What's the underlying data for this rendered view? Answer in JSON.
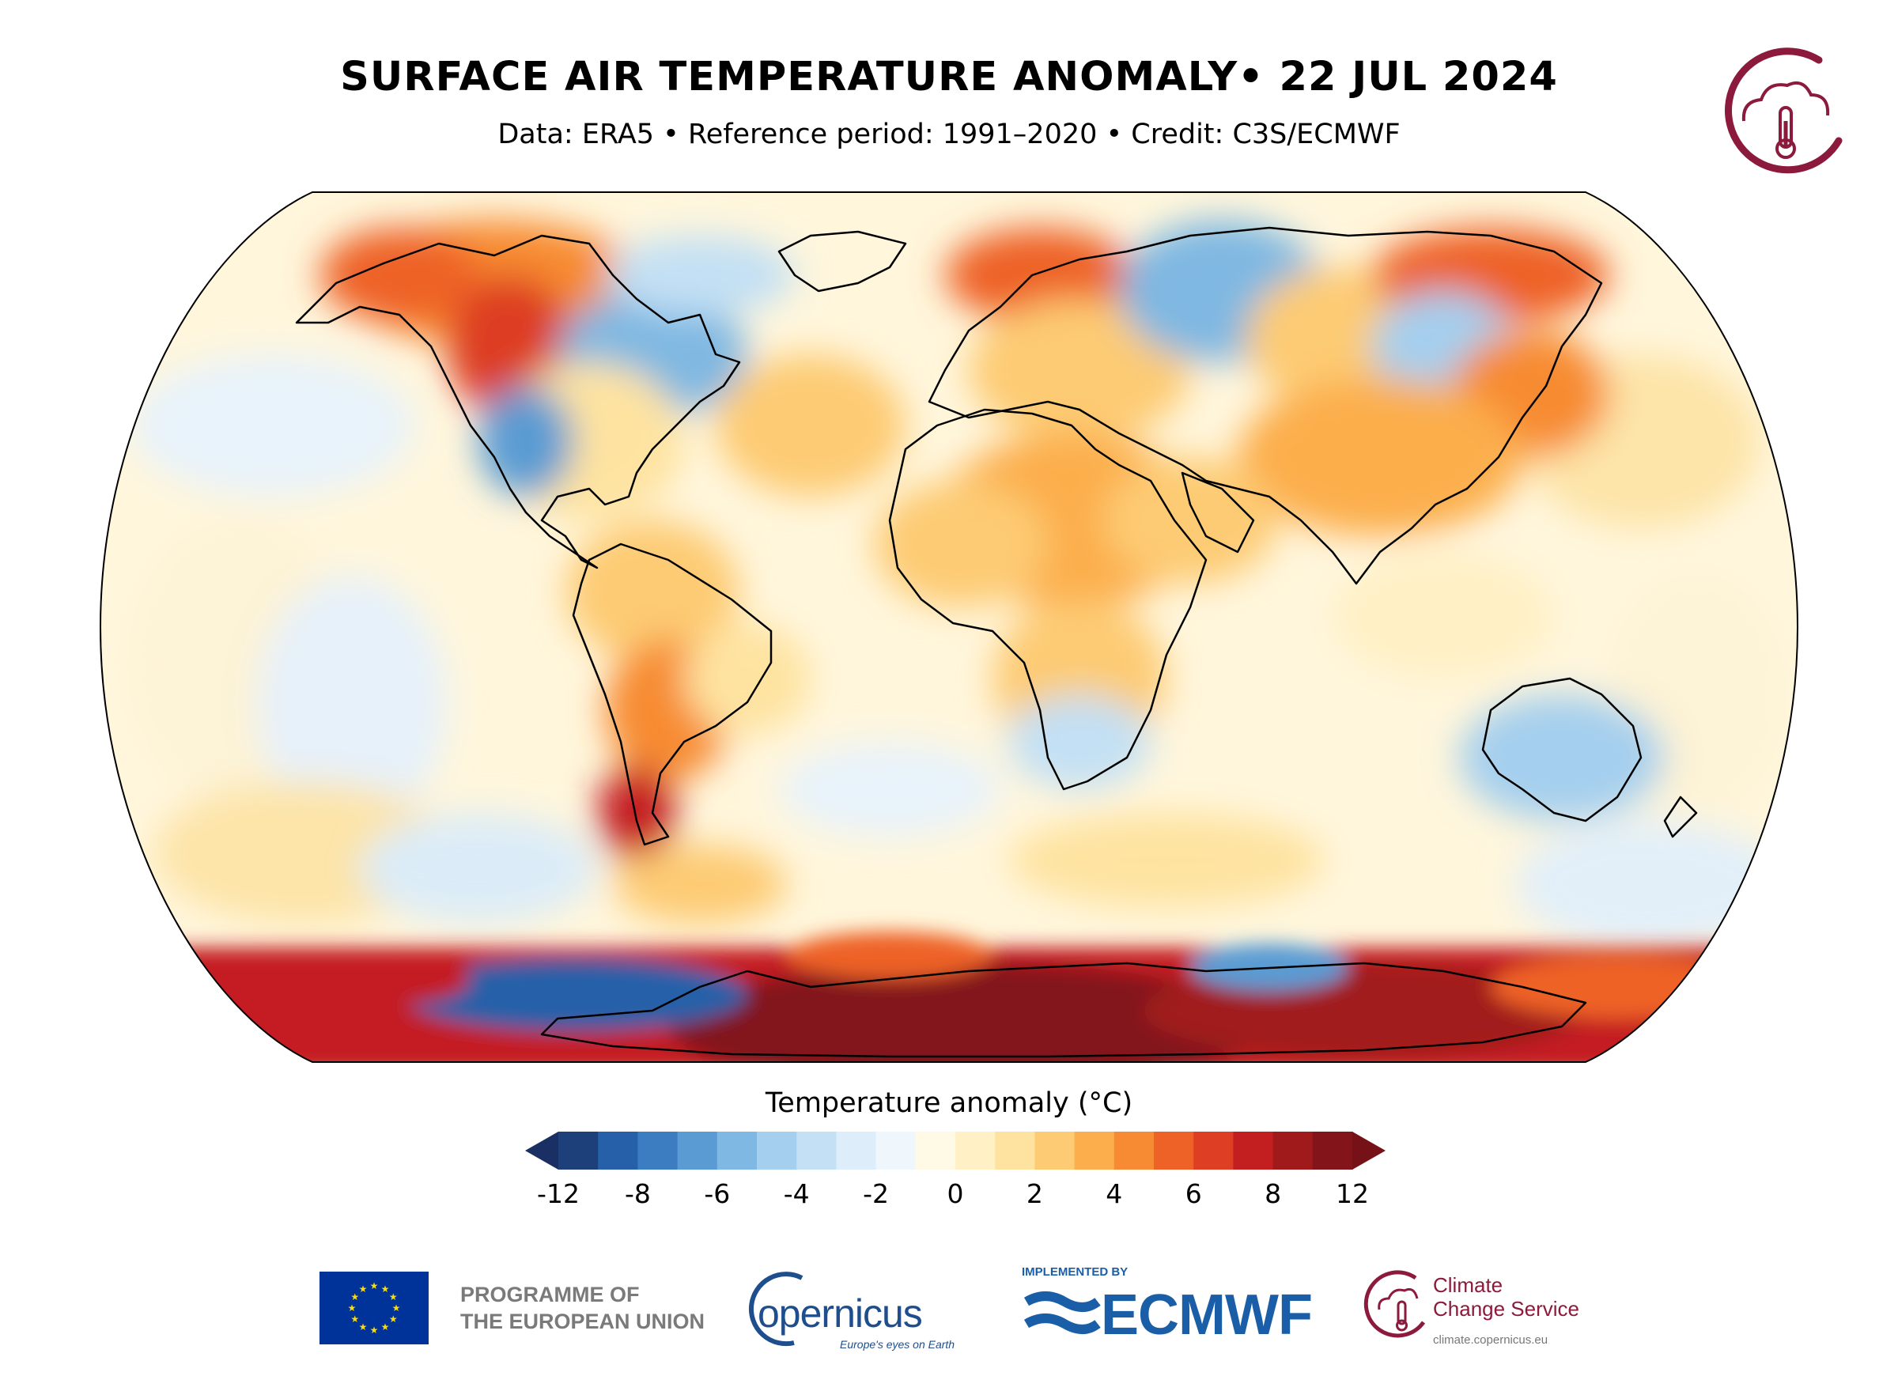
{
  "title": "SURFACE AIR TEMPERATURE ANOMALY• 22 JUL 2024",
  "subtitle": "Data: ERA5 • Reference period: 1991–2020 • Credit: C3S/ECMWF",
  "colorbar": {
    "title": "Temperature anomaly (°C)",
    "min": -12,
    "max": 12,
    "ticks": [
      "-12",
      "-8",
      "-6",
      "-4",
      "-2",
      "0",
      "2",
      "4",
      "6",
      "8",
      "12"
    ],
    "tick_values": [
      -12,
      -8,
      -6,
      -4,
      -2,
      0,
      2,
      4,
      6,
      8,
      12
    ],
    "bounds": [
      -12,
      -10,
      -8,
      -7,
      -6,
      -5,
      -4,
      -3,
      -2,
      -1,
      0,
      1,
      2,
      3,
      4,
      5,
      6,
      7,
      8,
      10,
      12
    ],
    "colors": [
      "#1d3f7a",
      "#2660a8",
      "#3b7dc0",
      "#5a9bd3",
      "#7fb8e2",
      "#a4cfee",
      "#c3e0f4",
      "#ddeefa",
      "#f0f7fc",
      "#fffae6",
      "#fff0c5",
      "#fee3a0",
      "#fdcb73",
      "#fcae4c",
      "#f78b33",
      "#ee6228",
      "#dd3e24",
      "#c41f20",
      "#a11a1b",
      "#82141a"
    ],
    "extend_low_color": "#1a2f64",
    "extend_high_color": "#761217"
  },
  "footer": {
    "eu_text_line1": "PROGRAMME OF",
    "eu_text_line2": "THE EUROPEAN UNION",
    "copernicus_word": "opernicus",
    "copernicus_tagline": "Europe's eyes on Earth",
    "ecmwf_implemented": "IMPLEMENTED BY",
    "ecmwf_word": "ECMWF",
    "c3s_line1": "Climate",
    "c3s_line2": "Change Service",
    "c3s_url": "climate.copernicus.eu"
  },
  "logo_colors": {
    "c3s": "#8c1a3c",
    "copernicus": "#1f4e8c",
    "ecmwf": "#1b5ea8",
    "eu_flag": "#003399",
    "eu_stars": "#ffdd00"
  }
}
